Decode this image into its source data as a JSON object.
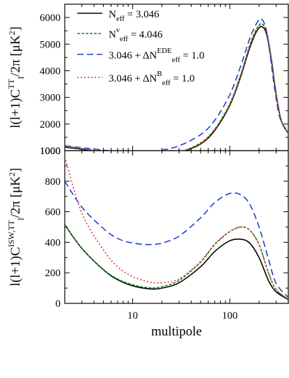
{
  "chart_data": [
    {
      "type": "line",
      "panel": "top",
      "xscale": "log",
      "xlim": [
        2,
        400
      ],
      "ylim": [
        1000,
        6500
      ],
      "ylabel": "l(l+1)C_l^TT/2π [μK^2]",
      "yticks": [
        "1000",
        "2000",
        "3000",
        "4000",
        "5000",
        "6000"
      ],
      "legend_position": "upper-left",
      "series": [
        {
          "name": "N_eff = 3.046",
          "legend": {
            "base": "N",
            "sub": "eff",
            "sup": "",
            "rest": " = 3.046"
          },
          "color": "#000000",
          "dash": "",
          "x": [
            2,
            3,
            5,
            7,
            10,
            15,
            20,
            30,
            50,
            70,
            100,
            130,
            160,
            190,
            215,
            240,
            270,
            300,
            340,
            400
          ],
          "y": [
            1130,
            1050,
            930,
            870,
            820,
            810,
            830,
            920,
            1250,
            1760,
            2700,
            3800,
            4850,
            5500,
            5650,
            5350,
            4300,
            3100,
            2100,
            1650
          ]
        },
        {
          "name": "N_eff^ν = 4.046",
          "legend": {
            "base": "N",
            "sub": "eff",
            "sup": "ν",
            "rest": " = 4.046"
          },
          "color": "#1a8a1a",
          "dash": "4,2",
          "x": [
            2,
            3,
            5,
            7,
            10,
            15,
            20,
            30,
            50,
            70,
            100,
            130,
            160,
            190,
            215,
            240,
            270,
            300,
            340,
            400
          ],
          "y": [
            1150,
            1070,
            950,
            885,
            830,
            820,
            845,
            940,
            1290,
            1810,
            2760,
            3880,
            4950,
            5600,
            5760,
            5450,
            4380,
            3150,
            2120,
            1660
          ]
        },
        {
          "name": "3.046 + ΔN_eff^EDE = 1.0",
          "legend": {
            "base": "3.046 + ΔN",
            "sub": "eff",
            "sup": "EDE",
            "rest": " = 1.0"
          },
          "color": "#1f3fd1",
          "dash": "9,5",
          "x": [
            2,
            3,
            5,
            7,
            10,
            15,
            20,
            30,
            50,
            70,
            100,
            130,
            160,
            190,
            210,
            235,
            260,
            290,
            330,
            400
          ],
          "y": [
            1180,
            1110,
            1020,
            970,
            950,
            965,
            1020,
            1180,
            1600,
            2140,
            3100,
            4200,
            5200,
            5800,
            5950,
            5600,
            4600,
            3300,
            2200,
            1700
          ]
        },
        {
          "name": "3.046 + ΔN_eff^B = 1.0",
          "legend": {
            "base": "3.046 + ΔN",
            "sub": "eff",
            "sup": "B",
            "rest": " = 1.0"
          },
          "color": "#e03030",
          "dash": "2,3",
          "x": [
            2,
            3,
            5,
            7,
            10,
            15,
            20,
            30,
            50,
            70,
            100,
            130,
            160,
            190,
            215,
            240,
            270,
            300,
            340,
            400
          ],
          "y": [
            1200,
            1080,
            945,
            880,
            830,
            815,
            835,
            930,
            1270,
            1790,
            2730,
            3840,
            4900,
            5550,
            5720,
            5420,
            4360,
            3130,
            2110,
            1655
          ]
        }
      ]
    },
    {
      "type": "line",
      "panel": "bottom",
      "xscale": "log",
      "xlim": [
        2,
        400
      ],
      "ylim": [
        0,
        1000
      ],
      "xlabel": "multipole",
      "ylabel": "l(l+1)C_l^ISW,TT/2π [μK^2]",
      "xticks": [
        "10",
        "100"
      ],
      "yticks": [
        "0",
        "200",
        "400",
        "600",
        "800",
        "1000"
      ],
      "series": [
        {
          "name": "N_eff = 3.046",
          "color": "#000000",
          "dash": "",
          "x": [
            2,
            3,
            5,
            7,
            10,
            15,
            20,
            30,
            50,
            70,
            100,
            130,
            160,
            200,
            250,
            300,
            400
          ],
          "y": [
            515,
            360,
            220,
            155,
            115,
            95,
            100,
            135,
            240,
            340,
            410,
            420,
            395,
            300,
            150,
            75,
            25
          ]
        },
        {
          "name": "N_eff^ν = 4.046",
          "color": "#1a8a1a",
          "dash": "4,2",
          "x": [
            2,
            3,
            5,
            7,
            10,
            15,
            20,
            30,
            50,
            70,
            100,
            130,
            160,
            200,
            250,
            300,
            400
          ],
          "y": [
            515,
            360,
            222,
            160,
            122,
            102,
            110,
            150,
            270,
            385,
            470,
            500,
            480,
            385,
            200,
            90,
            28
          ]
        },
        {
          "name": "3.046 + ΔN_eff^EDE = 1.0",
          "color": "#1f3fd1",
          "dash": "9,5",
          "x": [
            2,
            3,
            5,
            7,
            10,
            15,
            20,
            30,
            50,
            70,
            100,
            130,
            160,
            200,
            250,
            300,
            400
          ],
          "y": [
            800,
            630,
            490,
            425,
            395,
            385,
            395,
            440,
            560,
            660,
            720,
            710,
            650,
            500,
            290,
            130,
            40
          ]
        },
        {
          "name": "3.046 + ΔN_eff^B = 1.0",
          "color": "#e03030",
          "dash": "2,3",
          "x": [
            2,
            3,
            5,
            7,
            10,
            15,
            20,
            30,
            50,
            70,
            100,
            130,
            160,
            200,
            250,
            300,
            400
          ],
          "y": [
            960,
            590,
            350,
            240,
            175,
            140,
            135,
            160,
            275,
            390,
            470,
            500,
            480,
            385,
            200,
            90,
            28
          ]
        }
      ]
    }
  ]
}
